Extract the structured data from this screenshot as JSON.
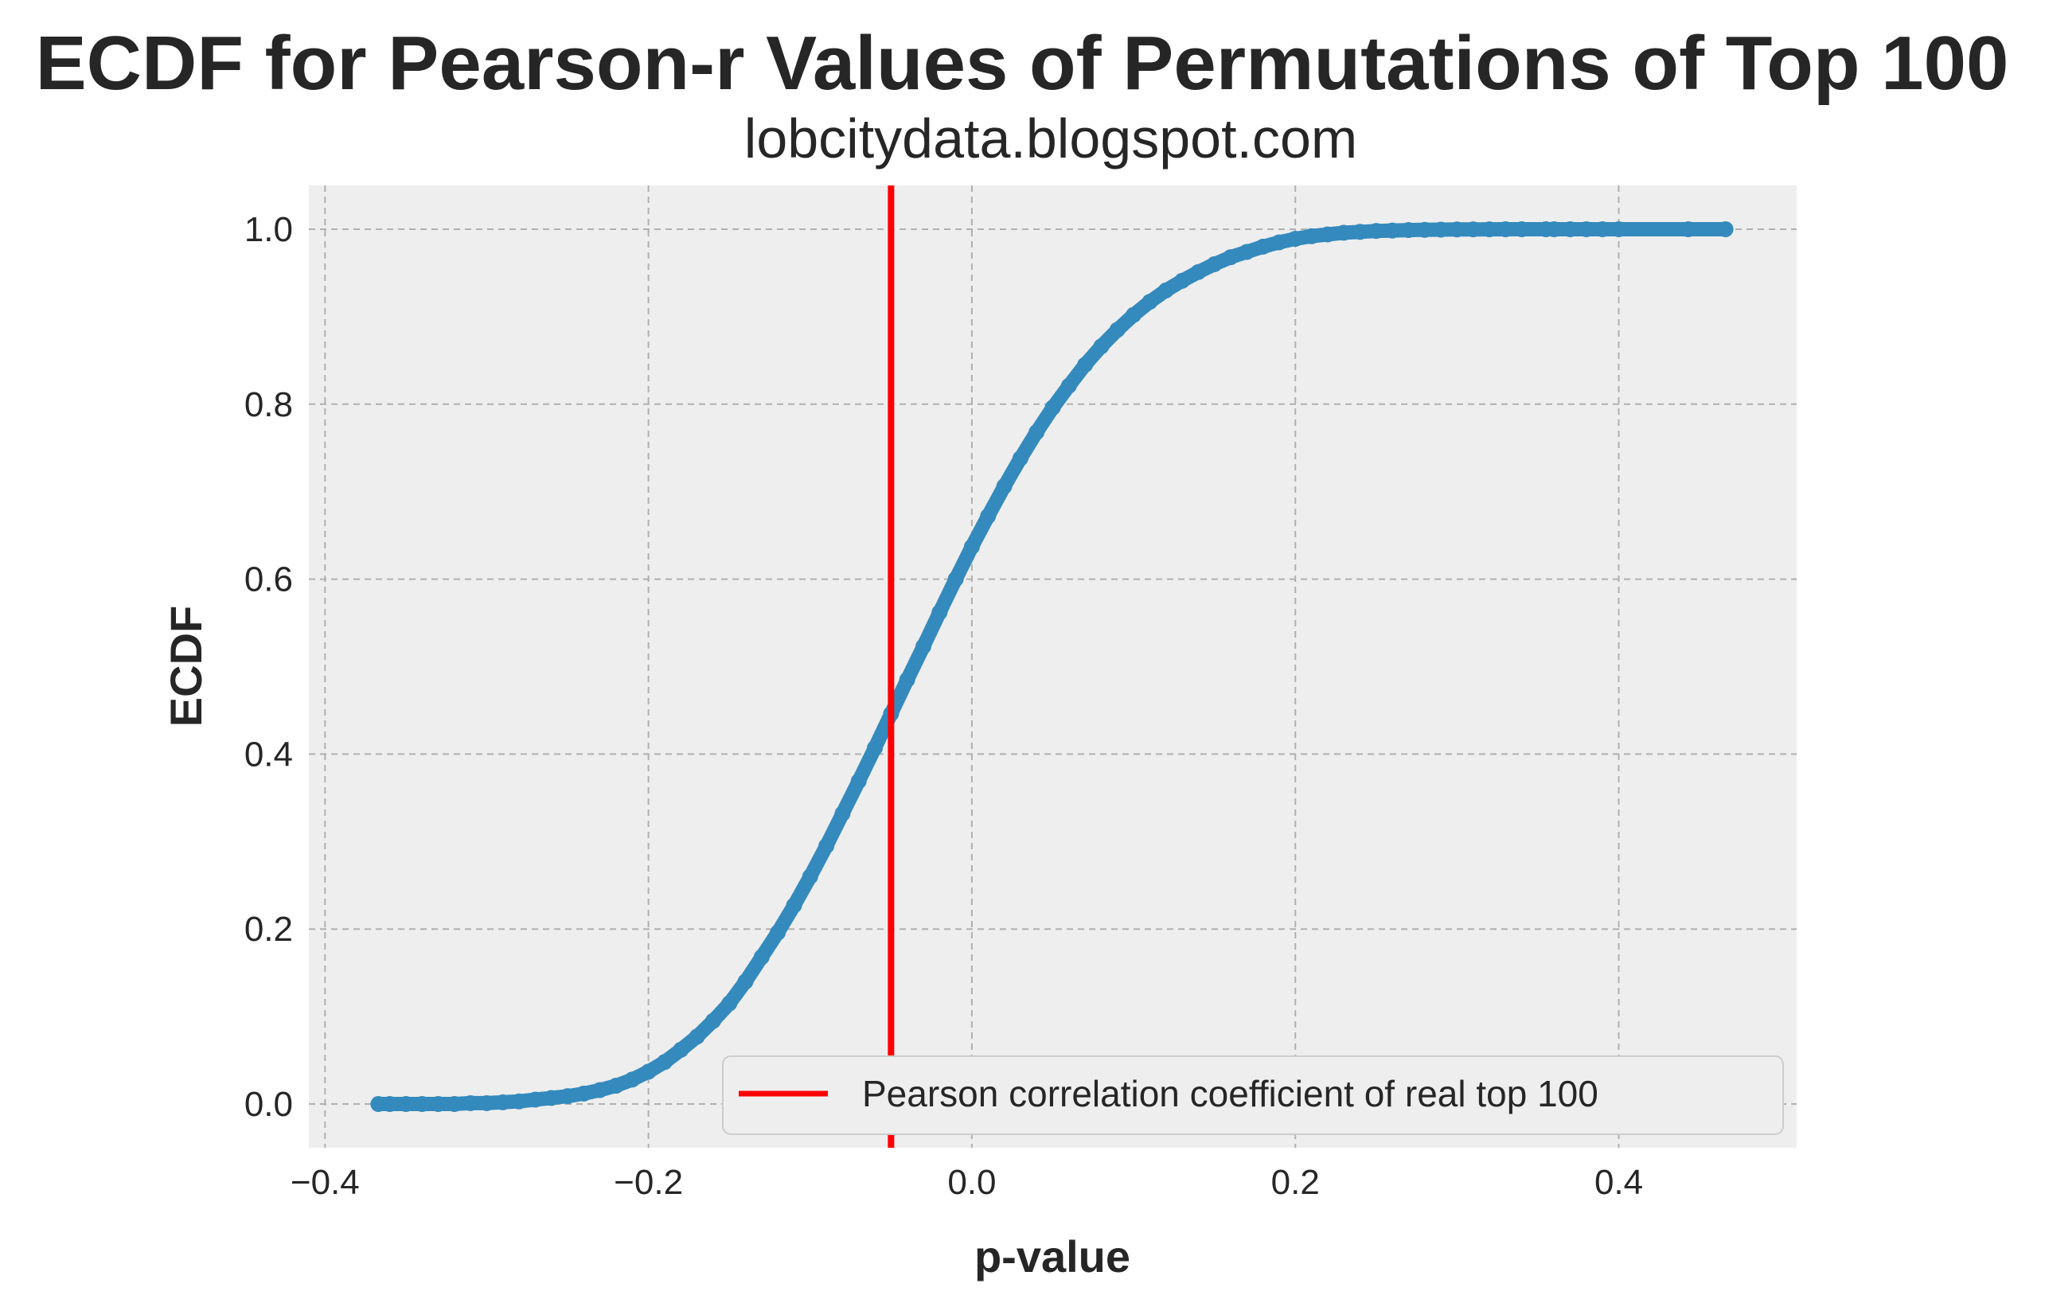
{
  "chart_data": {
    "type": "scatter",
    "title": "ECDF for Pearson-r Values of Permutations of Top 100",
    "subtitle": "lobcitydata.blogspot.com",
    "xlabel": "p-value",
    "ylabel": "ECDF",
    "xlim": [
      -0.41,
      0.51
    ],
    "ylim": [
      -0.05,
      1.05
    ],
    "xticks": [
      -0.4,
      -0.2,
      0.0,
      0.2,
      0.4
    ],
    "xtick_labels": [
      "−0.4",
      "−0.2",
      "0.0",
      "0.2",
      "0.4"
    ],
    "yticks": [
      0.0,
      0.2,
      0.4,
      0.6,
      0.8,
      1.0
    ],
    "ytick_labels": [
      "0.0",
      "0.2",
      "0.4",
      "0.6",
      "0.8",
      "1.0"
    ],
    "grid": true,
    "legend_position": "lower-right",
    "series": [
      {
        "name": "",
        "color": "#348ABD",
        "x": [
          -0.367,
          -0.36,
          -0.35,
          -0.34,
          -0.33,
          -0.32,
          -0.31,
          -0.3,
          -0.29,
          -0.28,
          -0.27,
          -0.26,
          -0.25,
          -0.24,
          -0.23,
          -0.22,
          -0.21,
          -0.2,
          -0.19,
          -0.18,
          -0.17,
          -0.16,
          -0.15,
          -0.14,
          -0.13,
          -0.12,
          -0.11,
          -0.1,
          -0.09,
          -0.08,
          -0.07,
          -0.06,
          -0.05,
          -0.04,
          -0.03,
          -0.02,
          -0.01,
          0.0,
          0.01,
          0.02,
          0.03,
          0.04,
          0.05,
          0.06,
          0.07,
          0.08,
          0.09,
          0.1,
          0.11,
          0.12,
          0.13,
          0.14,
          0.15,
          0.16,
          0.17,
          0.18,
          0.19,
          0.2,
          0.21,
          0.22,
          0.23,
          0.24,
          0.25,
          0.26,
          0.27,
          0.28,
          0.29,
          0.3,
          0.31,
          0.32,
          0.33,
          0.34,
          0.355,
          0.36,
          0.37,
          0.38,
          0.39,
          0.4,
          0.443,
          0.466
        ],
        "y": [
          0.0,
          0.0,
          0.0,
          0.0,
          0.0,
          0.0,
          0.001,
          0.001,
          0.002,
          0.003,
          0.005,
          0.007,
          0.009,
          0.012,
          0.016,
          0.021,
          0.028,
          0.037,
          0.048,
          0.062,
          0.077,
          0.095,
          0.115,
          0.14,
          0.168,
          0.196,
          0.227,
          0.26,
          0.295,
          0.332,
          0.369,
          0.407,
          0.446,
          0.485,
          0.523,
          0.562,
          0.6,
          0.637,
          0.672,
          0.706,
          0.738,
          0.768,
          0.796,
          0.821,
          0.845,
          0.866,
          0.885,
          0.902,
          0.917,
          0.93,
          0.941,
          0.951,
          0.96,
          0.968,
          0.974,
          0.98,
          0.985,
          0.989,
          0.992,
          0.994,
          0.996,
          0.997,
          0.998,
          0.9985,
          0.999,
          0.9993,
          0.9995,
          0.9997,
          0.9998,
          0.9999,
          1.0,
          1.0,
          1.0,
          1.0,
          1.0,
          1.0,
          1.0,
          1.0,
          1.0,
          1.0
        ]
      }
    ],
    "vline": {
      "x": -0.05,
      "color": "#FF0000",
      "label": "Pearson correlation coefficient of real top 100"
    },
    "background_color": "#EEEEEE"
  }
}
